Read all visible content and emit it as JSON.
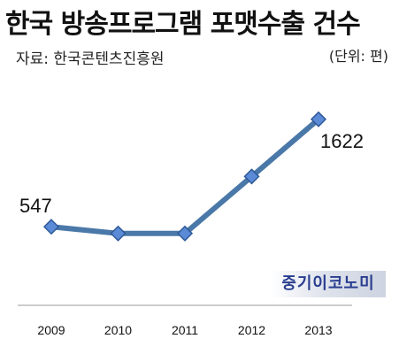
{
  "header": {
    "title": "한국 방송프로그램 포맷수출 건수",
    "source": "자료: 한국콘텐츠진흥원",
    "unit": "(단위: 편)"
  },
  "watermark": "중기이코노미",
  "colors": {
    "line": "#4a78a8",
    "marker_fill": "#5b8bd6",
    "marker_stroke": "#2f5a9a",
    "axis": "#999999"
  },
  "chart_data": {
    "type": "line",
    "categories": [
      "2009",
      "2010",
      "2011",
      "2012",
      "2013"
    ],
    "values": [
      547,
      480,
      480,
      1050,
      1622
    ],
    "data_labels": [
      "547",
      "",
      "",
      "",
      "1622"
    ],
    "ylim": [
      0,
      1700
    ],
    "grid": false,
    "legend": "none",
    "xlabel": "",
    "ylabel": ""
  }
}
